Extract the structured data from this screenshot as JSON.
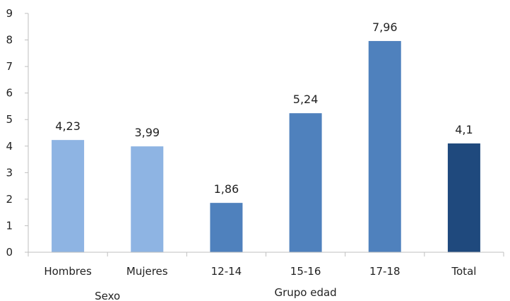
{
  "chart_data": {
    "type": "bar",
    "categories": [
      "Hombres",
      "Mujeres",
      "12-14",
      "15-16",
      "17-18",
      "Total"
    ],
    "values": [
      4.23,
      3.99,
      1.86,
      5.24,
      7.96,
      4.1
    ],
    "value_labels": [
      "4,23",
      "3,99",
      "1,86",
      "5,24",
      "7,96",
      "4,1"
    ],
    "bar_colors": [
      "#8eb4e3",
      "#8eb4e3",
      "#4f81bd",
      "#4f81bd",
      "#4f81bd",
      "#1f497d"
    ],
    "group_labels": [
      {
        "label": "Sexo",
        "categories": [
          "Hombres",
          "Mujeres"
        ]
      },
      {
        "label": "Grupo edad",
        "categories": [
          "12-14",
          "15-16",
          "17-18"
        ]
      }
    ],
    "yticks": [
      0,
      1,
      2,
      3,
      4,
      5,
      6,
      7,
      8,
      9
    ],
    "ylim": [
      0,
      9
    ],
    "grid": false,
    "legend": false,
    "title": "",
    "xlabel": "",
    "ylabel": "",
    "axis_color": "#bfbfbf"
  }
}
